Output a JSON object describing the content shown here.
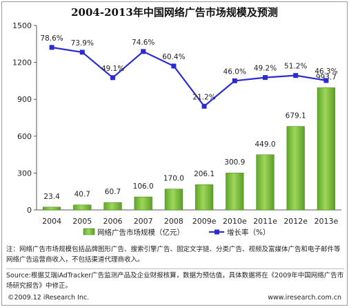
{
  "chart_data": {
    "type": "bar+line",
    "title": "2004-2013年中国网络广告市场规模及预测",
    "categories": [
      "2004",
      "2005",
      "2006",
      "2007",
      "2008",
      "2009e",
      "2010e",
      "2011e",
      "2012e",
      "2013e"
    ],
    "series": [
      {
        "name": "网络广告市场规模（亿元）",
        "type": "bar",
        "axis": "left",
        "values": [
          23.4,
          40.7,
          60.7,
          106.0,
          170.0,
          206.1,
          300.9,
          449.0,
          679.1,
          993.7
        ],
        "value_labels": [
          "23.4",
          "40.7",
          "60.7",
          "106.0",
          "170.0",
          "206.1",
          "300.9",
          "449.0",
          "679.1",
          "993.7"
        ],
        "color": "#7fc241"
      },
      {
        "name": "增长率（%）",
        "type": "line",
        "axis": "secondary",
        "values": [
          78.6,
          73.9,
          49.1,
          74.6,
          60.4,
          21.2,
          46.0,
          49.2,
          51.2,
          46.3
        ],
        "value_labels": [
          "78.6%",
          "73.9%",
          "49.1%",
          "74.6%",
          "60.4%",
          "21.2%",
          "46.0%",
          "49.2%",
          "51.2%",
          "46.3%"
        ],
        "color": "#2a2ad6"
      }
    ],
    "y_ticks": [
      "0",
      "300",
      "600",
      "900",
      "1200",
      "1500"
    ],
    "ylim": [
      0,
      1500
    ],
    "secondary_range_percent": [
      -80,
      100
    ],
    "legend": {
      "position": "bottom",
      "bar_label": "网络广告市场规模（亿元）",
      "line_label": "增长率（%）"
    }
  },
  "notes": {
    "note": "注：网络广告市场规模包括品牌图形广告、搜索引擎广告、固定文字链、分类广告、视频及富媒体广告和电子邮件等网络广告运营商收入，不包括渠道代理商收入。",
    "source": "Source:根据艾瑞iAdTracker广告监测产品及企业财报核算，数据为预估值，具体数据将在《2009年中国网络广告市场研究报告》中修正。"
  },
  "footer": {
    "left": "©2009.12  iResearch Inc.",
    "right": "www.iresearch.com.cn"
  }
}
